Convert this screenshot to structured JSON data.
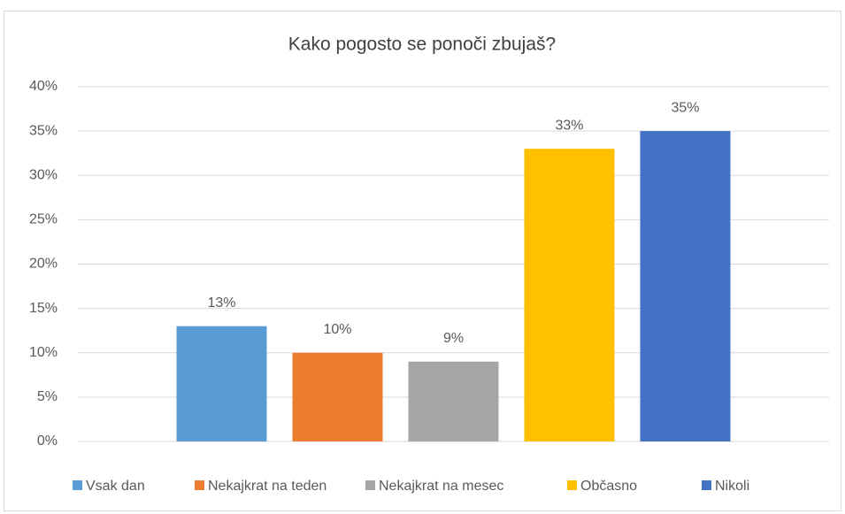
{
  "chart_data": {
    "type": "bar",
    "title": "Kako pogosto se ponoči zbujaš?",
    "categories": [
      null
    ],
    "series": [
      {
        "name": "Vsak dan",
        "color": "#5b9bd5",
        "values": [
          13
        ],
        "value_labels": [
          "13%"
        ]
      },
      {
        "name": "Nekajkrat na teden",
        "color": "#ed7d31",
        "values": [
          10
        ],
        "value_labels": [
          "10%"
        ]
      },
      {
        "name": "Nekajkrat na mesec",
        "color": "#a5a5a5",
        "values": [
          9
        ],
        "value_labels": [
          "9%"
        ]
      },
      {
        "name": "Občasno",
        "color": "#ffc000",
        "values": [
          33
        ],
        "value_labels": [
          "33%"
        ]
      },
      {
        "name": "Nikoli",
        "color": "#4472c4",
        "values": [
          35
        ],
        "value_labels": [
          "35%"
        ]
      }
    ],
    "ylim": [
      0,
      40
    ],
    "yticks": [
      {
        "value": 0,
        "label": "0%"
      },
      {
        "value": 5,
        "label": "5%"
      },
      {
        "value": 10,
        "label": "10%"
      },
      {
        "value": 15,
        "label": "15%"
      },
      {
        "value": 20,
        "label": "20%"
      },
      {
        "value": 25,
        "label": "25%"
      },
      {
        "value": 30,
        "label": "30%"
      },
      {
        "value": 35,
        "label": "35%"
      },
      {
        "value": 40,
        "label": "40%"
      }
    ],
    "grid": true,
    "legend": "bottom"
  }
}
